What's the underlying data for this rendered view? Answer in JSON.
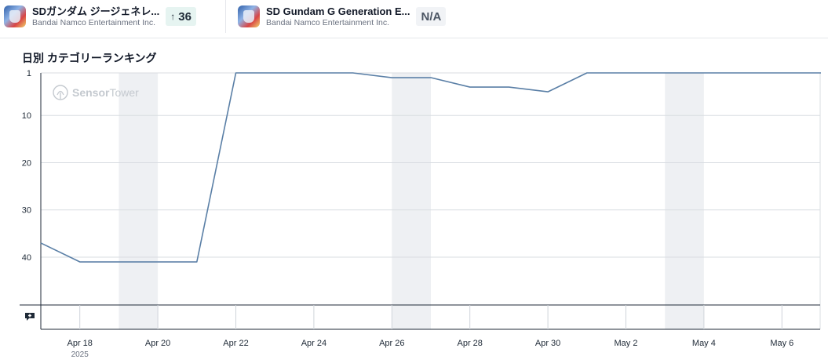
{
  "apps": [
    {
      "name": "SDガンダム ジージェネレ...",
      "publisher": "Bandai Namco Entertainment Inc.",
      "rank_change": "36",
      "rank_arrow": "↑",
      "icon": "sd-gundam-app-icon"
    },
    {
      "name": "SD Gundam G Generation E...",
      "publisher": "Bandai Namco Entertainment Inc.",
      "rank_change": "N/A",
      "icon": "sd-gundam-app-icon"
    }
  ],
  "chart_title": "日別 カテゴリーランキング",
  "watermark": {
    "brand_bold": "Sensor",
    "brand_light": "Tower"
  },
  "colors": {
    "line": "#5a7fa6",
    "weekend_band": "#eef0f3",
    "badge_up": "#e6f4f1"
  },
  "chart_data": {
    "type": "line",
    "title": "日別 カテゴリーランキング",
    "y_inverted": true,
    "ylim": [
      1,
      50
    ],
    "y_ticks": [
      "1",
      "10",
      "20",
      "30",
      "40"
    ],
    "x_ticks": [
      "Apr 18",
      "Apr 20",
      "Apr 22",
      "Apr 24",
      "Apr 26",
      "Apr 28",
      "Apr 30",
      "May 2",
      "May 4",
      "May 6"
    ],
    "x_tick_year": "2025",
    "weekend_bands": [
      [
        "Apr 19",
        "Apr 20"
      ],
      [
        "Apr 26",
        "Apr 27"
      ],
      [
        "May 3",
        "May 4"
      ]
    ],
    "grid": true,
    "series": [
      {
        "x": [
          "Apr 17",
          "Apr 18",
          "Apr 19",
          "Apr 20",
          "Apr 21",
          "Apr 22",
          "Apr 23",
          "Apr 24",
          "Apr 25",
          "Apr 26",
          "Apr 27",
          "Apr 28",
          "Apr 29",
          "Apr 30",
          "May 1",
          "May 2",
          "May 3",
          "May 4",
          "May 5",
          "May 6",
          "May 7"
        ],
        "values": [
          37,
          41,
          41,
          41,
          41,
          1,
          1,
          1,
          1,
          2,
          2,
          4,
          4,
          5,
          1,
          1,
          1,
          1,
          1,
          1,
          1
        ]
      }
    ]
  }
}
